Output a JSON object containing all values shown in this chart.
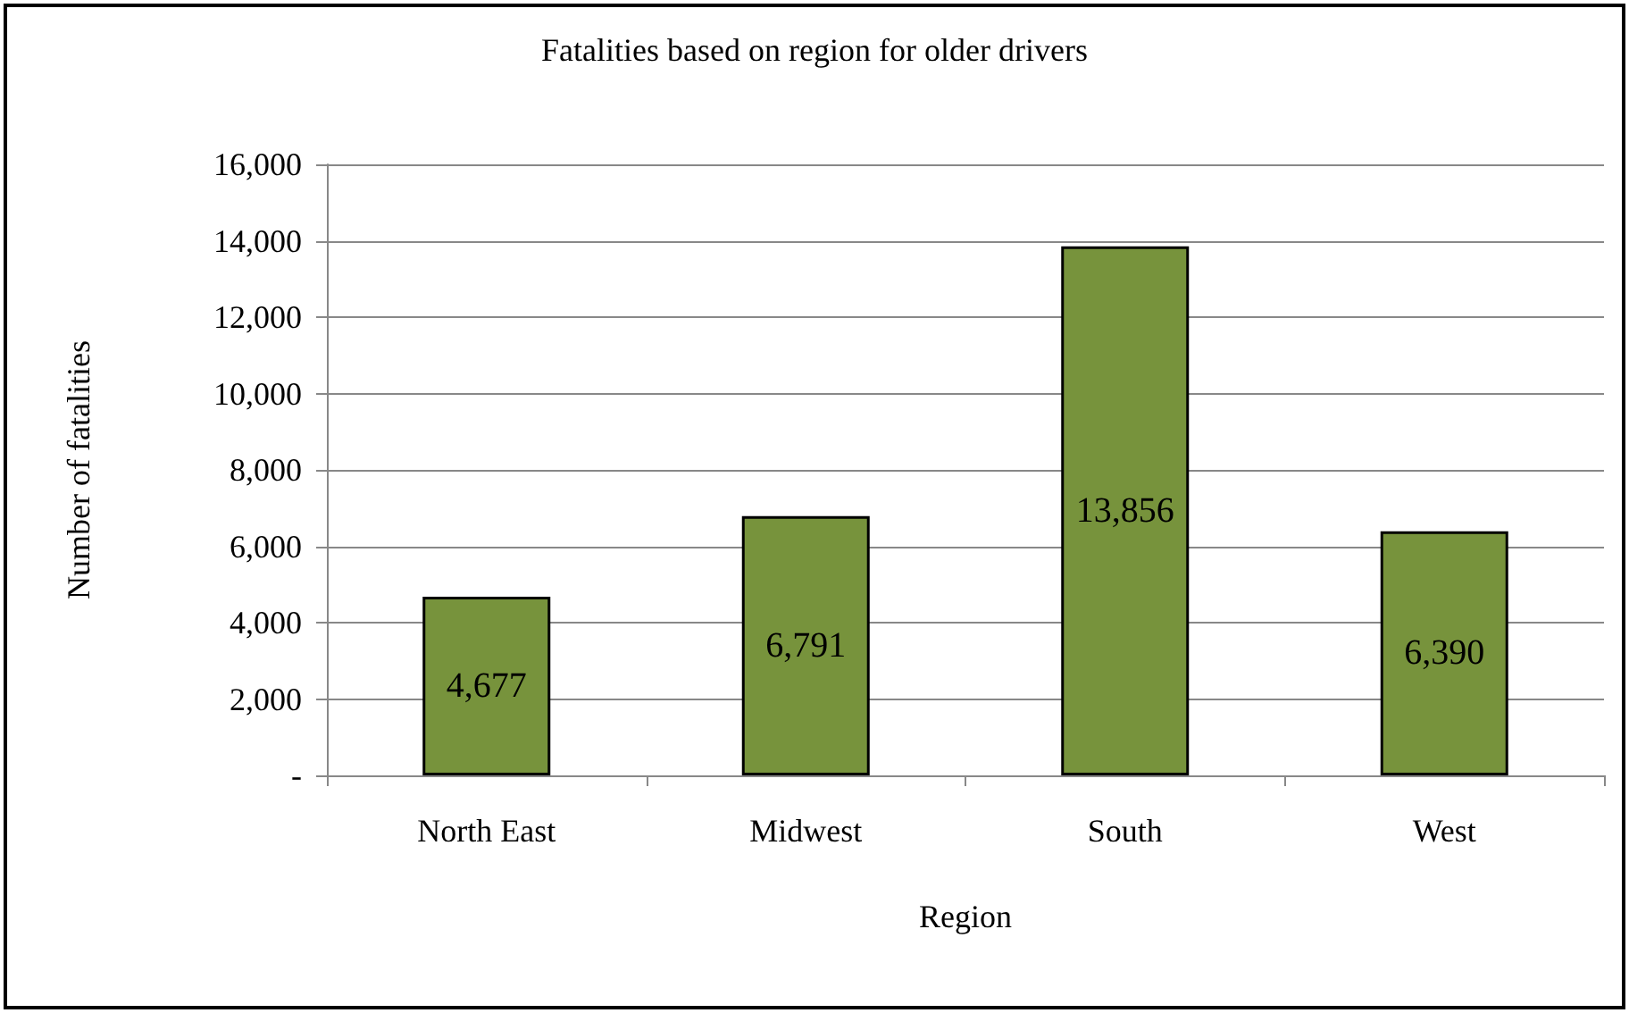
{
  "chart_data": {
    "type": "bar",
    "title": "Fatalities based on region for older drivers",
    "xlabel": "Region",
    "ylabel": "Number of fatalities",
    "categories": [
      "North East",
      "Midwest",
      "South",
      "West"
    ],
    "values": [
      4677,
      6791,
      13856,
      6390
    ],
    "value_labels": [
      "4,677",
      "6,791",
      "13,856",
      "6,390"
    ],
    "color": "#77933c",
    "ylim": [
      0,
      16000
    ],
    "yticks": [
      {
        "value": 0,
        "label": "-"
      },
      {
        "value": 2000,
        "label": "2,000"
      },
      {
        "value": 4000,
        "label": "4,000"
      },
      {
        "value": 6000,
        "label": "6,000"
      },
      {
        "value": 8000,
        "label": "8,000"
      },
      {
        "value": 10000,
        "label": "10,000"
      },
      {
        "value": 12000,
        "label": "12,000"
      },
      {
        "value": 14000,
        "label": "14,000"
      },
      {
        "value": 16000,
        "label": "16,000"
      }
    ],
    "grid": "y"
  }
}
